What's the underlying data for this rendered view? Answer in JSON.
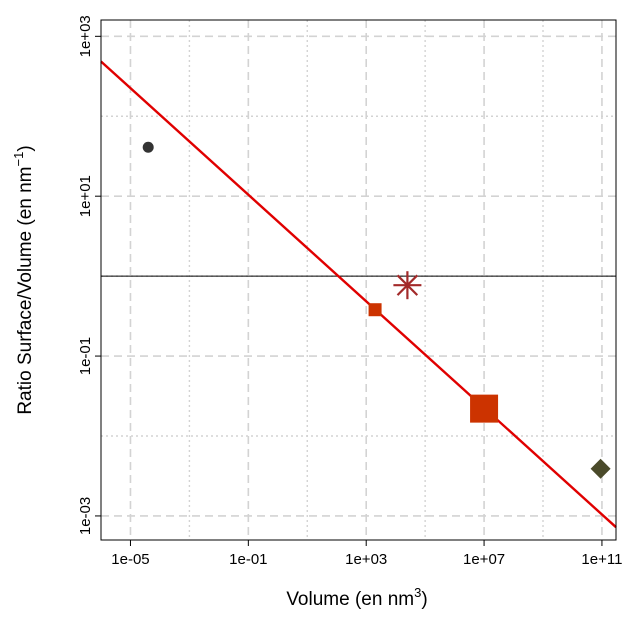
{
  "chart_data": {
    "type": "scatter",
    "xscale": "log10",
    "yscale": "log10",
    "xlim": [
      1e-06,
      300000000000.0
    ],
    "ylim": [
      0.0005,
      1600
    ],
    "xticks": [
      {
        "value": 1e-05,
        "label": "1e-05"
      },
      {
        "value": 0.1,
        "label": "1e-01"
      },
      {
        "value": 1000.0,
        "label": "1e+03"
      },
      {
        "value": 10000000.0,
        "label": "1e+07"
      },
      {
        "value": 100000000000.0,
        "label": "1e+11"
      }
    ],
    "yticks": [
      {
        "value": 0.001,
        "label": "1e-03"
      },
      {
        "value": 0.1,
        "label": "1e-01"
      },
      {
        "value": 10.0,
        "label": "1e+01"
      },
      {
        "value": 1000.0,
        "label": "1e+03"
      }
    ],
    "xlabel": {
      "main": "Volume  (en  nm",
      "sup": "3",
      "end": ")"
    },
    "ylabel": {
      "main": "Ratio  Surface/Volume  (en  nm",
      "sup": "−1",
      "end": ")"
    },
    "grid": true,
    "hline": {
      "y": 1,
      "color": "#000000"
    },
    "fit_line": {
      "relation": "y = 4.84 * x^(-1/3)",
      "color": "#e00000"
    },
    "points": [
      {
        "x": 4e-05,
        "y": 41,
        "marker": "circle",
        "color": "#333333"
      },
      {
        "x": 2000,
        "y": 0.38,
        "marker": "square-small",
        "color": "#cc3300"
      },
      {
        "x": 25000,
        "y": 0.77,
        "marker": "asterisk",
        "color": "#a32a2a"
      },
      {
        "x": 10000000.0,
        "y": 0.022,
        "marker": "square-large",
        "color": "#cc3300"
      },
      {
        "x": 90000000000.0,
        "y": 0.0039,
        "marker": "diamond",
        "color": "#4a4a2a"
      }
    ]
  }
}
